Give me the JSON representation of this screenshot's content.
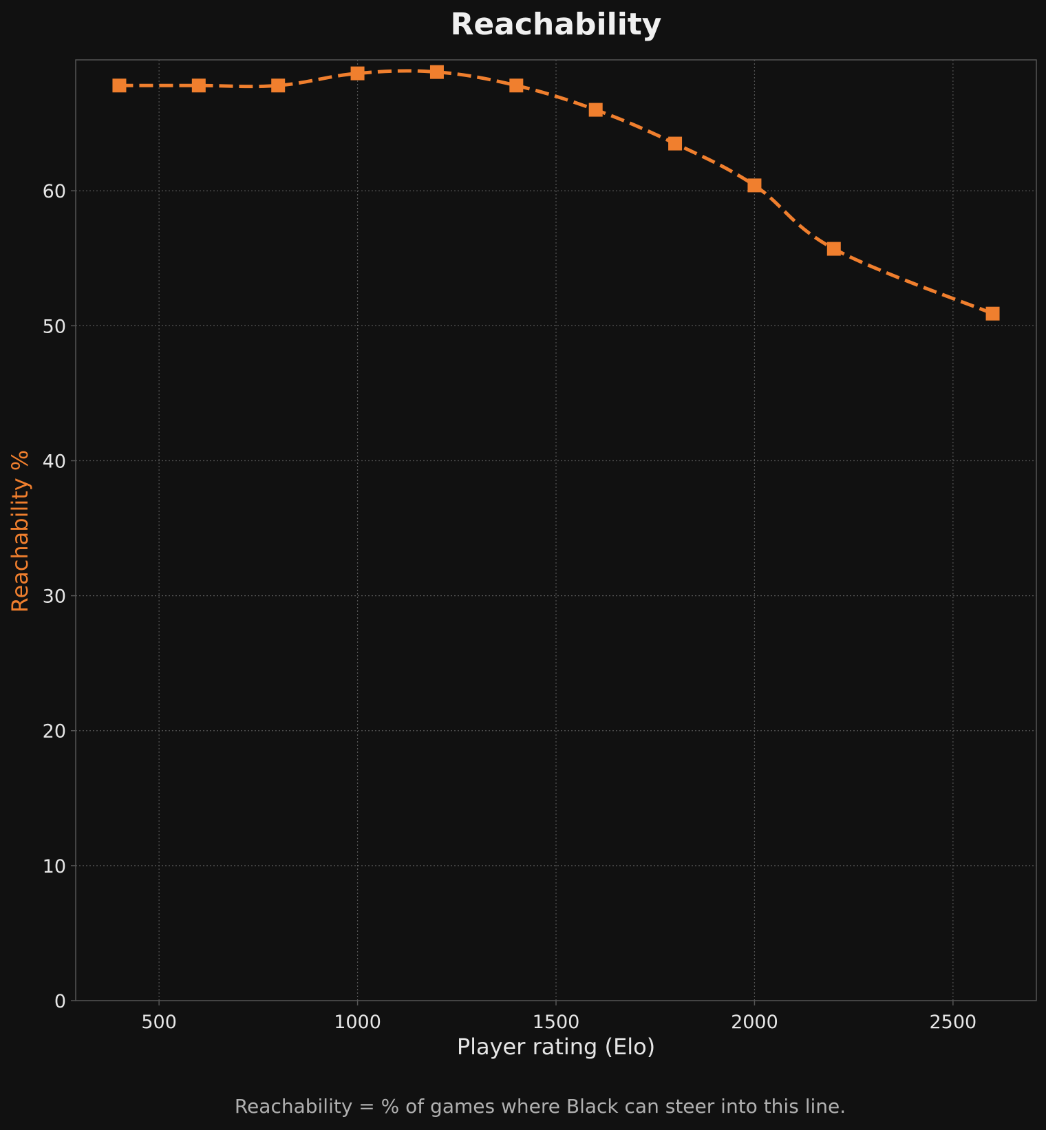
{
  "chart_data": {
    "type": "line",
    "title": "Reachability",
    "xlabel": "Player rating (Elo)",
    "ylabel": "Reachability %",
    "footnote": "Reachability = % of games where Black can steer into this line.",
    "x": [
      400,
      600,
      800,
      1000,
      1200,
      1400,
      1600,
      1800,
      2000,
      2200,
      2600
    ],
    "series": [
      {
        "values": [
          67.8,
          67.8,
          67.8,
          68.7,
          68.8,
          67.8,
          66.0,
          63.5,
          60.4,
          55.7,
          50.9
        ],
        "color": "#f07f2e",
        "linestyle": "dashed",
        "marker": "square"
      }
    ],
    "xlim": [
      290,
      2710
    ],
    "ylim": [
      0,
      69.7
    ],
    "xticks": [
      "500",
      "1000",
      "1500",
      "2000",
      "2500"
    ],
    "yticks": [
      "0",
      "10",
      "20",
      "30",
      "40",
      "50",
      "60"
    ],
    "grid": true,
    "background": "#111111",
    "axis_color": "#555555",
    "ylabel_color": "#f07f2e",
    "xlabel_color": "#e6e6e6"
  }
}
